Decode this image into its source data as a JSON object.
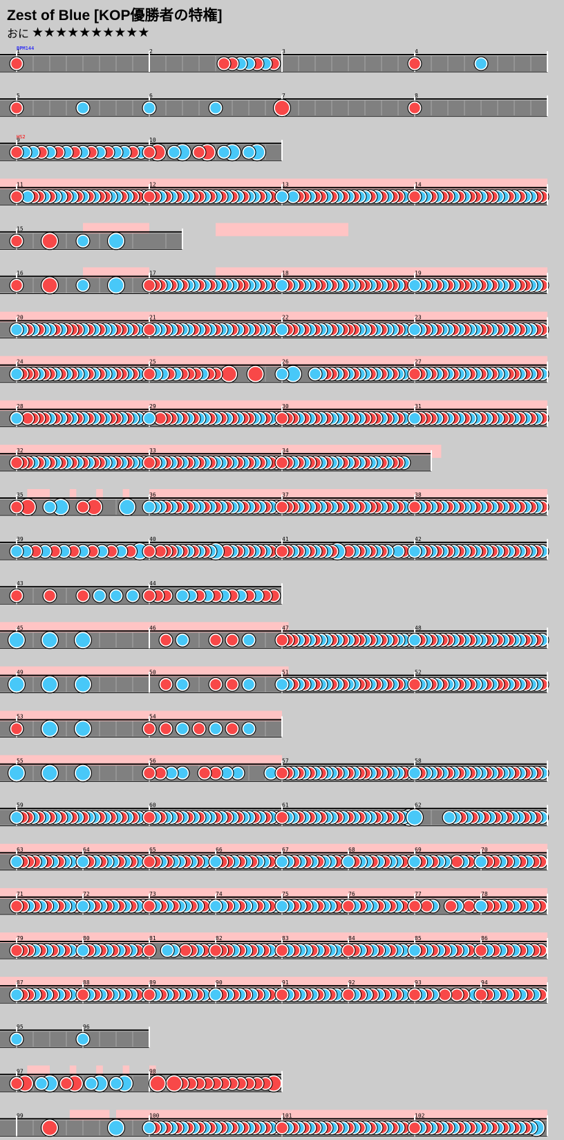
{
  "song": {
    "title": "Zest of Blue [KOP優勝者の特権]",
    "course": "おに",
    "stars": "★★★★★★★★★★",
    "level": 10
  },
  "annotations": {
    "bpm": "BPM144",
    "hs": "HS2"
  },
  "colors": {
    "background": "#cccccc",
    "lane": "#808080",
    "go_go_time": "#ffc4c4",
    "don": "#f84848",
    "ka": "#48c8f8",
    "bpm_text": "#0000ff",
    "hs_text": "#ff0000"
  },
  "rows": [
    {
      "measures": [
        {
          "n": "1",
          "beats": 8,
          "notes": "d.......|........"
        },
        {
          "n": "2",
          "beats": 8,
          "notes": "........|.ddkkdkd"
        },
        {
          "n": "3",
          "beats": 8,
          "notes": "........|........"
        },
        {
          "n": "4",
          "beats": 8,
          "notes": "d.......|k......."
        }
      ]
    },
    {
      "measures": [
        {
          "n": "5",
          "beats": 8,
          "notes": "d.......|k......."
        },
        {
          "n": "6",
          "beats": 8,
          "notes": "k.......|k......."
        },
        {
          "n": "7",
          "beats": 8,
          "notes": "D.......|........"
        },
        {
          "n": "8",
          "beats": 8,
          "notes": "d.......|........"
        }
      ]
    },
    {
      "measures": [
        {
          "n": "9",
          "beats": 8,
          "notes": "dkkdkdkdkdkdkkdk"
        },
        {
          "n": "10",
          "beats": 8,
          "notes": "dD.kK.dD.kK.kK.."
        }
      ]
    },
    {
      "gogo": [
        [
          0,
          4
        ]
      ],
      "measures": [
        {
          "n": "11",
          "beats": 8,
          "notes": "d.kddkdkkdkdkdkddkkdkddk"
        },
        {
          "n": "12",
          "beats": 8,
          "notes": "ddkdkdkkddkdkdkdkdkkdkdd"
        },
        {
          "n": "13",
          "beats": 8,
          "notes": "k.kddkddkdkdkdkkdkdkddkd"
        },
        {
          "n": "14",
          "beats": 8,
          "notes": "dkkdkddkdkddkddkkdkdkkdd"
        }
      ]
    },
    {
      "gogo": [
        [
          0.5,
          1
        ],
        [
          1.5,
          2.5
        ]
      ],
      "measures": [
        {
          "n": "15",
          "beats": 8,
          "notes": "d.D.k.K."
        },
        {
          "n": "",
          "beats": 2,
          "notes": "...."
        }
      ]
    },
    {
      "gogo": [
        [
          0.5,
          1
        ],
        [
          1.5,
          4
        ]
      ],
      "measures": [
        {
          "n": "16",
          "beats": 8,
          "notes": "d.D.k.K."
        },
        {
          "n": "17",
          "beats": 8,
          "notes": "dddkdkdkkdkdkdkkddkkdkdk"
        },
        {
          "n": "18",
          "beats": 8,
          "notes": "kdkdkkddkdkdkkddkdkddkdd"
        },
        {
          "n": "19",
          "beats": 8,
          "notes": "kkdkdkdkddkkdkdkkdkddkkd"
        }
      ]
    },
    {
      "gogo": [
        [
          0,
          4
        ]
      ],
      "measures": [
        {
          "n": "20",
          "beats": 8,
          "notes": "kkdkdkkdkdddkdkdkkddkdkd"
        },
        {
          "n": "21",
          "beats": 8,
          "notes": "dkkdkdkkdkdkdkkdkdkdkkdd"
        },
        {
          "n": "22",
          "beats": 8,
          "notes": "kddkdkdkkdkdddkkdkdkkdkd"
        },
        {
          "n": "23",
          "beats": 8,
          "notes": "kkdkdkkdkdkkddkdkdkdkkdd"
        }
      ]
    },
    {
      "gogo": [
        [
          0,
          4
        ]
      ],
      "measures": [
        {
          "n": "24",
          "beats": 8,
          "notes": "kdddkddkdkdkkdkdkkddkdkd"
        },
        {
          "n": "25",
          "beats": 8,
          "notes": "dkkdkdddkdd.D...D..."
        },
        {
          "n": "26",
          "beats": 8,
          "notes": "k.K...kkddkdkdkkdkdkdkkd"
        },
        {
          "n": "27",
          "beats": 8,
          "notes": "ddkdkdkdkkdkdkdkkddkdkdk"
        }
      ]
    },
    {
      "gogo": [
        [
          0,
          4
        ]
      ],
      "measures": [
        {
          "n": "28",
          "beats": 8,
          "notes": "k.ddddkdkdkdkdkdkddkdkkd"
        },
        {
          "n": "29",
          "beats": 8,
          "notes": "k.dddkdkdkkdkdkdkddkkdkd"
        },
        {
          "n": "30",
          "beats": 8,
          "notes": "dddkdkdkdkkdkdkdddkdkdkd"
        },
        {
          "n": "31",
          "beats": 8,
          "notes": "kdddkdkdkdkkdkdkddkdkdkd"
        }
      ]
    },
    {
      "gogo": [
        [
          0,
          3.2
        ]
      ],
      "measures": [
        {
          "n": "32",
          "beats": 8,
          "notes": "dddkdkdkdkdkdkddkkdkdkkd"
        },
        {
          "n": "33",
          "beats": 8,
          "notes": "ddkdkdkdkdkdkkdkdkdkdkdd"
        },
        {
          "n": "34",
          "beats": 8,
          "notes": "ddkdkddkdkkdkdkdkkdkddk."
        },
        {
          "n": "",
          "beats": 1,
          "notes": ".."
        }
      ]
    },
    {
      "gogo": [
        [
          0.08,
          0.25
        ],
        [
          0.4,
          0.45
        ],
        [
          0.6,
          0.65
        ],
        [
          0.8,
          0.85
        ],
        [
          1,
          4
        ]
      ],
      "measures": [
        {
          "n": "35",
          "beats": 8,
          "notes": "dD.kK.dD..K."
        },
        {
          "n": "36",
          "beats": 8,
          "notes": "kkkdkdkdkkdkdkdkkdkdkdkd"
        },
        {
          "n": "37",
          "beats": 8,
          "notes": "dddkdkdkdkdkdkdkddkdkdkd"
        },
        {
          "n": "38",
          "beats": 8,
          "notes": "dkdkdkdkdkkdkdkdkdkdkdkd"
        }
      ]
    },
    {
      "measures": [
        {
          "n": "39",
          "beats": 8,
          "notes": "kkdkdkdkdkdkdK"
        },
        {
          "n": "40",
          "beats": 8,
          "notes": "d.dddkdkdkdkK.dkdkdkdkdk"
        },
        {
          "n": "41",
          "beats": 8,
          "notes": "ddkdkdkdkdK.dkdkdkdk.kdk"
        },
        {
          "n": "42",
          "beats": 8,
          "notes": "kkdkdkdkdkdkdkdkdkdkdkdk"
        }
      ]
    },
    {
      "measures": [
        {
          "n": "43",
          "beats": 8,
          "notes": "d.d.dkkk"
        },
        {
          "n": "44",
          "beats": 8,
          "notes": "ddd.kkdkdkdkdkdd"
        }
      ]
    },
    {
      "gogo": [
        [
          0,
          2.05
        ]
      ],
      "measures": [
        {
          "n": "45",
          "beats": 8,
          "notes": "K.K.K..."
        },
        {
          "n": "46",
          "beats": 8,
          "notes": ".dk.ddk."
        },
        {
          "n": "47",
          "beats": 8,
          "notes": "dddkdkdkkdkdkddkdkdkdkkd"
        },
        {
          "n": "48",
          "beats": 8,
          "notes": "kdkdkddkdkdkkdkdkdkkdkdk"
        }
      ]
    },
    {
      "gogo": [
        [
          0,
          2.05
        ]
      ],
      "measures": [
        {
          "n": "49",
          "beats": 8,
          "notes": "K.K.K..."
        },
        {
          "n": "50",
          "beats": 8,
          "notes": ".dk.ddk."
        },
        {
          "n": "51",
          "beats": 8,
          "notes": "kkdkdkdkkdkdkkddkdkdkdkd"
        },
        {
          "n": "52",
          "beats": 8,
          "notes": "dkkdkdkkdkdkkdkddkdkdkkd"
        }
      ]
    },
    {
      "gogo": [
        [
          0,
          2
        ]
      ],
      "measures": [
        {
          "n": "53",
          "beats": 8,
          "notes": "d.K.K..."
        },
        {
          "n": "54",
          "beats": 8,
          "notes": "ddkdkdk."
        }
      ]
    },
    {
      "gogo": [
        [
          0,
          2
        ]
      ],
      "measures": [
        {
          "n": "55",
          "beats": 8,
          "notes": "K.K.K..."
        },
        {
          "n": "56",
          "beats": 8,
          "notes": "ddkk.ddkk..k"
        },
        {
          "n": "57",
          "beats": 8,
          "notes": "ddkdkdkdkkdkdkddkdkdkkdk"
        },
        {
          "n": "58",
          "beats": 8,
          "notes": "kdkkdkdkdkdkkdkdkkdkdkdk"
        }
      ]
    },
    {
      "measures": [
        {
          "n": "59",
          "beats": 8,
          "notes": "kddkdkdkdkdkdkkdkdkdkdkd"
        },
        {
          "n": "60",
          "beats": 8,
          "notes": "dkdkkdkdkdkkdkdkdkkdkdkd"
        },
        {
          "n": "61",
          "beats": 8,
          "notes": "dkkdkdkdkkdkdkdkkdkdkdkK"
        },
        {
          "n": "62",
          "beats": 8,
          "notes": "K.....kkdkdkdkdkdkkdkdk"
        }
      ]
    },
    {
      "gogo": [
        [
          0,
          4
        ]
      ],
      "measures": [
        {
          "n": "63",
          "beats": 4,
          "notes": "kdddkdkdkkd"
        },
        {
          "n": "64",
          "beats": 4,
          "notes": "kdkdkkdkdkd"
        },
        {
          "n": "65",
          "beats": 4,
          "notes": "ddkdkkdkdkd"
        },
        {
          "n": "66",
          "beats": 4,
          "notes": "kddkdkdkkdd"
        },
        {
          "n": "67",
          "beats": 4,
          "notes": "kkdkdkdkkdd"
        },
        {
          "n": "68",
          "beats": 4,
          "notes": "kdkkdkdkkdd"
        },
        {
          "n": "69",
          "beats": 4,
          "notes": "kdkdkk.dkdk"
        },
        {
          "n": "70",
          "beats": 4,
          "notes": "kddkdkdkdd"
        }
      ]
    },
    {
      "gogo": [
        [
          0,
          4
        ]
      ],
      "measures": [
        {
          "n": "71",
          "beats": 4,
          "notes": "ddkdkdkdkkd"
        },
        {
          "n": "72",
          "beats": 4,
          "notes": "kkdkdkdkdkd"
        },
        {
          "n": "73",
          "beats": 4,
          "notes": "dkdkdkkdkdk"
        },
        {
          "n": "74",
          "beats": 4,
          "notes": "kkdkdkkdkdk"
        },
        {
          "n": "75",
          "beats": 4,
          "notes": "kkdkdkdkkdk"
        },
        {
          "n": "76",
          "beats": 4,
          "notes": "dkdkkdkdkdk"
        },
        {
          "n": "77",
          "beats": 4,
          "notes": "d.dk..dk.dd"
        },
        {
          "n": "78",
          "beats": 4,
          "notes": "kddkdkdkdd"
        }
      ]
    },
    {
      "gogo": [
        [
          0,
          4
        ]
      ],
      "measures": [
        {
          "n": "79",
          "beats": 4,
          "notes": "dddkdkdkdkd"
        },
        {
          "n": "80",
          "beats": 4,
          "notes": "kdkdkdkdkdk"
        },
        {
          "n": "81",
          "beats": 4,
          "notes": "d..kk.ddkdk"
        },
        {
          "n": "82",
          "beats": 4,
          "notes": "dddkdkdkdkd"
        },
        {
          "n": "83",
          "beats": 4,
          "notes": "dkdkkdkdkkd"
        },
        {
          "n": "84",
          "beats": 4,
          "notes": "ddkdkdkdkkd"
        },
        {
          "n": "85",
          "beats": 4,
          "notes": "kdkdkdkdkdk"
        },
        {
          "n": "86",
          "beats": 4,
          "notes": "dkdkdkdkdd"
        }
      ]
    },
    {
      "gogo": [
        [
          0,
          4
        ]
      ],
      "measures": [
        {
          "n": "87",
          "beats": 4,
          "notes": "kddkdkdkdkd"
        },
        {
          "n": "88",
          "beats": 4,
          "notes": "dkdkdkkdkdk"
        },
        {
          "n": "89",
          "beats": 4,
          "notes": "dkdkdkdkdkd"
        },
        {
          "n": "90",
          "beats": 4,
          "notes": "kdkdkdkdkdk"
        },
        {
          "n": "91",
          "beats": 4,
          "notes": "dkdkdkdkdkk"
        },
        {
          "n": "92",
          "beats": 4,
          "notes": "dkdkdkdkdkk"
        },
        {
          "n": "93",
          "beats": 4,
          "notes": "dkdk.d.dd.k"
        },
        {
          "n": "94",
          "beats": 4,
          "notes": "ddkdkdkdkd"
        }
      ]
    },
    {
      "measures": [
        {
          "n": "95",
          "beats": 4,
          "notes": "k......."
        },
        {
          "n": "96",
          "beats": 4,
          "notes": "k......."
        }
      ]
    },
    {
      "gogo": [
        [
          0.08,
          0.25
        ],
        [
          0.4,
          0.45
        ],
        [
          0.6,
          0.65
        ],
        [
          0.8,
          0.85
        ],
        [
          1,
          1.05
        ]
      ],
      "measures": [
        {
          "n": "97",
          "beats": 8,
          "notes": "dD.kK.dD.kK.kK.."
        },
        {
          "n": "98",
          "beats": 8,
          "notes": ".D.DdddddddddddD"
        }
      ]
    },
    {
      "gogo": [
        [
          0.4,
          0.7
        ],
        [
          0.75,
          4
        ]
      ],
      "measures": [
        {
          "n": "99",
          "beats": 8,
          "notes": "..D...K."
        },
        {
          "n": "100",
          "beats": 8,
          "notes": "kdkdkdkdkdkdkdkdkdkdkdkd"
        },
        {
          "n": "101",
          "beats": 8,
          "notes": "dkdkdkdkdkdkdkdkdkdkdkdk"
        },
        {
          "n": "102",
          "beats": 8,
          "notes": "dkdkdkdkdkdkdkdkdkdkdkK."
        }
      ]
    }
  ]
}
